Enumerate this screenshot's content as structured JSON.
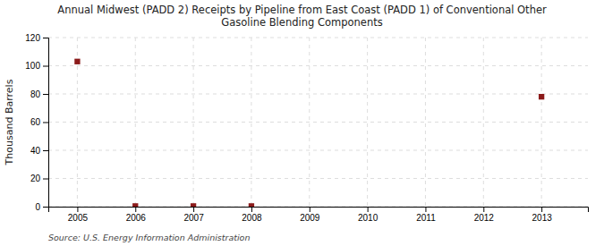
{
  "chart_data": {
    "type": "scatter",
    "title": "Annual Midwest (PADD 2) Receipts by Pipeline from East Coast (PADD 1) of Conventional Other\nGasoline Blending Components",
    "y_label": "Thousand Barrels",
    "source": "Source: U.S. Energy Information Administration",
    "x": [
      2005,
      2006,
      2007,
      2008,
      2013
    ],
    "values": [
      103,
      0.4,
      0.4,
      0.4,
      78
    ],
    "xlim": [
      2004.5,
      2013.8
    ],
    "ylim": [
      0,
      120
    ],
    "xticks": [
      2005,
      2006,
      2007,
      2008,
      2009,
      2010,
      2011,
      2012,
      2013
    ],
    "yticks": [
      0,
      20,
      40,
      60,
      80,
      100,
      120
    ],
    "color": "#8b1a1a",
    "marker": "square",
    "grid": true
  }
}
